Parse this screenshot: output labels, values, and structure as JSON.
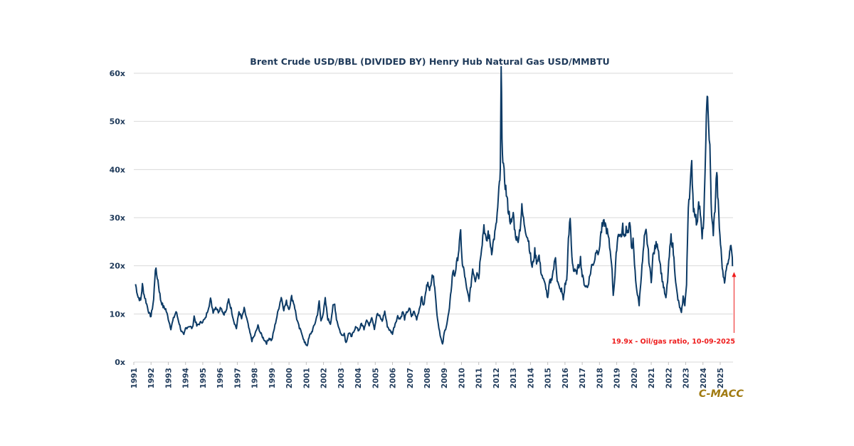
{
  "chart_data": {
    "type": "line",
    "title": "Brent Crude USD/BBL (DIVIDED BY) Henry Hub Natural Gas USD/MMBTU",
    "xlabel": "",
    "ylabel": "",
    "ylim": [
      0,
      60
    ],
    "xlim": [
      1991,
      2025.75
    ],
    "grid": true,
    "y_ticks": [
      {
        "value": 0,
        "label": "0x"
      },
      {
        "value": 10,
        "label": "10x"
      },
      {
        "value": 20,
        "label": "20x"
      },
      {
        "value": 30,
        "label": "30x"
      },
      {
        "value": 40,
        "label": "40x"
      },
      {
        "value": 50,
        "label": "50x"
      },
      {
        "value": 60,
        "label": "60x"
      }
    ],
    "x_ticks": [
      "1991",
      "1992",
      "1993",
      "1994",
      "1995",
      "1996",
      "1997",
      "1998",
      "1999",
      "2000",
      "2001",
      "2002",
      "2003",
      "2004",
      "2005",
      "2006",
      "2007",
      "2008",
      "2009",
      "2010",
      "2011",
      "2012",
      "2013",
      "2014",
      "2015",
      "2016",
      "2017",
      "2018",
      "2019",
      "2020",
      "2021",
      "2022",
      "2023",
      "2024",
      "2025"
    ],
    "series": [
      {
        "name": "Oil/gas ratio",
        "color": "#0d3b66",
        "points": [
          [
            1991.1,
            16.2
          ],
          [
            1991.25,
            13.5
          ],
          [
            1991.4,
            12.8
          ],
          [
            1991.5,
            16.0
          ],
          [
            1991.6,
            14.0
          ],
          [
            1991.75,
            12.0
          ],
          [
            1991.9,
            10.0
          ],
          [
            1992.0,
            9.5
          ],
          [
            1992.15,
            13.0
          ],
          [
            1992.25,
            19.5
          ],
          [
            1992.4,
            17.0
          ],
          [
            1992.55,
            13.0
          ],
          [
            1992.7,
            11.5
          ],
          [
            1992.85,
            11.0
          ],
          [
            1993.0,
            9.0
          ],
          [
            1993.15,
            7.0
          ],
          [
            1993.3,
            9.0
          ],
          [
            1993.45,
            10.5
          ],
          [
            1993.6,
            8.5
          ],
          [
            1993.75,
            6.5
          ],
          [
            1993.9,
            5.5
          ],
          [
            1994.0,
            7.0
          ],
          [
            1994.2,
            7.5
          ],
          [
            1994.4,
            7.0
          ],
          [
            1994.5,
            9.5
          ],
          [
            1994.65,
            7.5
          ],
          [
            1994.8,
            8.0
          ],
          [
            1995.0,
            8.5
          ],
          [
            1995.15,
            9.0
          ],
          [
            1995.3,
            11.0
          ],
          [
            1995.45,
            13.0
          ],
          [
            1995.6,
            10.5
          ],
          [
            1995.75,
            11.5
          ],
          [
            1995.9,
            10.5
          ],
          [
            1996.05,
            11.5
          ],
          [
            1996.2,
            10.0
          ],
          [
            1996.35,
            10.5
          ],
          [
            1996.5,
            13.0
          ],
          [
            1996.65,
            11.0
          ],
          [
            1996.8,
            8.5
          ],
          [
            1996.95,
            7.0
          ],
          [
            1997.1,
            10.5
          ],
          [
            1997.25,
            9.0
          ],
          [
            1997.4,
            11.0
          ],
          [
            1997.55,
            9.0
          ],
          [
            1997.7,
            6.5
          ],
          [
            1997.85,
            4.5
          ],
          [
            1998.0,
            5.5
          ],
          [
            1998.2,
            7.5
          ],
          [
            1998.35,
            6.0
          ],
          [
            1998.5,
            5.0
          ],
          [
            1998.7,
            4.0
          ],
          [
            1998.85,
            5.0
          ],
          [
            1999.0,
            4.5
          ],
          [
            1999.15,
            7.0
          ],
          [
            1999.3,
            9.5
          ],
          [
            1999.45,
            12.0
          ],
          [
            1999.55,
            13.5
          ],
          [
            1999.7,
            11.0
          ],
          [
            1999.85,
            12.5
          ],
          [
            2000.0,
            11.0
          ],
          [
            2000.15,
            13.5
          ],
          [
            2000.3,
            12.0
          ],
          [
            2000.45,
            9.0
          ],
          [
            2000.6,
            7.0
          ],
          [
            2000.75,
            6.0
          ],
          [
            2000.9,
            4.0
          ],
          [
            2001.05,
            3.5
          ],
          [
            2001.2,
            5.5
          ],
          [
            2001.35,
            6.5
          ],
          [
            2001.5,
            8.0
          ],
          [
            2001.65,
            10.0
          ],
          [
            2001.75,
            12.5
          ],
          [
            2001.85,
            8.5
          ],
          [
            2002.0,
            10.5
          ],
          [
            2002.1,
            13.0
          ],
          [
            2002.25,
            9.0
          ],
          [
            2002.4,
            8.0
          ],
          [
            2002.55,
            11.5
          ],
          [
            2002.65,
            12.0
          ],
          [
            2002.75,
            9.0
          ],
          [
            2002.9,
            7.0
          ],
          [
            2003.05,
            5.5
          ],
          [
            2003.2,
            6.0
          ],
          [
            2003.3,
            4.0
          ],
          [
            2003.45,
            6.0
          ],
          [
            2003.6,
            5.5
          ],
          [
            2003.75,
            6.0
          ],
          [
            2003.9,
            7.5
          ],
          [
            2004.05,
            6.5
          ],
          [
            2004.2,
            8.0
          ],
          [
            2004.35,
            7.0
          ],
          [
            2004.5,
            9.0
          ],
          [
            2004.65,
            7.5
          ],
          [
            2004.8,
            9.5
          ],
          [
            2004.95,
            7.0
          ],
          [
            2005.1,
            10.0
          ],
          [
            2005.25,
            9.5
          ],
          [
            2005.4,
            8.5
          ],
          [
            2005.55,
            10.5
          ],
          [
            2005.7,
            7.5
          ],
          [
            2005.85,
            6.5
          ],
          [
            2006.0,
            6.0
          ],
          [
            2006.15,
            8.0
          ],
          [
            2006.3,
            9.5
          ],
          [
            2006.45,
            9.0
          ],
          [
            2006.6,
            10.5
          ],
          [
            2006.7,
            9.0
          ],
          [
            2006.85,
            10.5
          ],
          [
            2007.0,
            11.0
          ],
          [
            2007.1,
            9.5
          ],
          [
            2007.25,
            10.5
          ],
          [
            2007.4,
            9.0
          ],
          [
            2007.55,
            11.0
          ],
          [
            2007.7,
            13.5
          ],
          [
            2007.8,
            11.5
          ],
          [
            2007.95,
            15.0
          ],
          [
            2008.05,
            17.0
          ],
          [
            2008.15,
            14.5
          ],
          [
            2008.3,
            18.5
          ],
          [
            2008.45,
            16.0
          ],
          [
            2008.55,
            11.0
          ],
          [
            2008.65,
            8.0
          ],
          [
            2008.8,
            5.0
          ],
          [
            2008.9,
            3.5
          ],
          [
            2009.0,
            6.0
          ],
          [
            2009.15,
            8.0
          ],
          [
            2009.3,
            11.0
          ],
          [
            2009.4,
            15.0
          ],
          [
            2009.5,
            19.0
          ],
          [
            2009.6,
            18.0
          ],
          [
            2009.75,
            21.0
          ],
          [
            2009.85,
            23.5
          ],
          [
            2009.95,
            27.0
          ],
          [
            2010.05,
            20.0
          ],
          [
            2010.15,
            19.0
          ],
          [
            2010.3,
            15.0
          ],
          [
            2010.45,
            13.0
          ],
          [
            2010.55,
            16.0
          ],
          [
            2010.65,
            19.5
          ],
          [
            2010.8,
            17.0
          ],
          [
            2010.9,
            19.0
          ],
          [
            2011.0,
            17.5
          ],
          [
            2011.1,
            22.0
          ],
          [
            2011.2,
            25.0
          ],
          [
            2011.3,
            28.5
          ],
          [
            2011.45,
            24.5
          ],
          [
            2011.55,
            27.0
          ],
          [
            2011.65,
            25.0
          ],
          [
            2011.75,
            23.0
          ],
          [
            2011.9,
            26.0
          ],
          [
            2012.0,
            28.0
          ],
          [
            2012.1,
            32.0
          ],
          [
            2012.2,
            37.0
          ],
          [
            2012.25,
            39.0
          ],
          [
            2012.3,
            60.5
          ],
          [
            2012.35,
            48.0
          ],
          [
            2012.4,
            41.0
          ],
          [
            2012.5,
            38.0
          ],
          [
            2012.6,
            35.0
          ],
          [
            2012.7,
            32.0
          ],
          [
            2012.8,
            30.0
          ],
          [
            2012.9,
            28.5
          ],
          [
            2013.0,
            31.0
          ],
          [
            2013.1,
            27.0
          ],
          [
            2013.25,
            25.0
          ],
          [
            2013.4,
            28.0
          ],
          [
            2013.5,
            32.0
          ],
          [
            2013.6,
            29.5
          ],
          [
            2013.75,
            27.0
          ],
          [
            2013.9,
            25.0
          ],
          [
            2014.0,
            22.0
          ],
          [
            2014.1,
            19.5
          ],
          [
            2014.25,
            23.0
          ],
          [
            2014.35,
            21.0
          ],
          [
            2014.5,
            22.0
          ],
          [
            2014.6,
            19.0
          ],
          [
            2014.75,
            17.0
          ],
          [
            2014.9,
            15.5
          ],
          [
            2015.0,
            13.0
          ],
          [
            2015.1,
            16.5
          ],
          [
            2015.2,
            17.0
          ],
          [
            2015.35,
            19.5
          ],
          [
            2015.45,
            22.0
          ],
          [
            2015.55,
            17.0
          ],
          [
            2015.7,
            15.0
          ],
          [
            2015.8,
            15.0
          ],
          [
            2015.9,
            13.0
          ],
          [
            2016.0,
            16.0
          ],
          [
            2016.1,
            17.0
          ],
          [
            2016.2,
            25.0
          ],
          [
            2016.3,
            30.0
          ],
          [
            2016.4,
            22.0
          ],
          [
            2016.5,
            19.0
          ],
          [
            2016.65,
            18.5
          ],
          [
            2016.8,
            20.0
          ],
          [
            2016.9,
            21.5
          ],
          [
            2017.0,
            18.0
          ],
          [
            2017.15,
            16.0
          ],
          [
            2017.3,
            15.5
          ],
          [
            2017.45,
            18.0
          ],
          [
            2017.55,
            20.0
          ],
          [
            2017.7,
            21.0
          ],
          [
            2017.85,
            24.0
          ],
          [
            2017.95,
            22.0
          ],
          [
            2018.05,
            26.0
          ],
          [
            2018.15,
            28.0
          ],
          [
            2018.3,
            29.0
          ],
          [
            2018.45,
            27.0
          ],
          [
            2018.55,
            25.0
          ],
          [
            2018.7,
            21.0
          ],
          [
            2018.8,
            14.0
          ],
          [
            2018.9,
            18.0
          ],
          [
            2019.0,
            24.0
          ],
          [
            2019.1,
            27.0
          ],
          [
            2019.25,
            26.0
          ],
          [
            2019.35,
            28.0
          ],
          [
            2019.45,
            25.5
          ],
          [
            2019.55,
            28.0
          ],
          [
            2019.65,
            27.0
          ],
          [
            2019.75,
            29.0
          ],
          [
            2019.85,
            24.0
          ],
          [
            2019.95,
            25.0
          ],
          [
            2020.0,
            22.0
          ],
          [
            2020.1,
            17.0
          ],
          [
            2020.2,
            14.0
          ],
          [
            2020.3,
            12.0
          ],
          [
            2020.4,
            17.0
          ],
          [
            2020.5,
            21.0
          ],
          [
            2020.6,
            25.5
          ],
          [
            2020.7,
            27.0
          ],
          [
            2020.8,
            24.0
          ],
          [
            2020.9,
            20.0
          ],
          [
            2021.0,
            17.0
          ],
          [
            2021.1,
            22.0
          ],
          [
            2021.25,
            24.0
          ],
          [
            2021.35,
            25.0
          ],
          [
            2021.5,
            21.0
          ],
          [
            2021.6,
            18.0
          ],
          [
            2021.75,
            15.0
          ],
          [
            2021.85,
            13.0
          ],
          [
            2021.95,
            17.0
          ],
          [
            2022.05,
            22.0
          ],
          [
            2022.15,
            26.0
          ],
          [
            2022.25,
            24.0
          ],
          [
            2022.35,
            20.0
          ],
          [
            2022.45,
            15.5
          ],
          [
            2022.55,
            13.0
          ],
          [
            2022.65,
            11.5
          ],
          [
            2022.75,
            10.0
          ],
          [
            2022.85,
            13.5
          ],
          [
            2022.95,
            12.0
          ],
          [
            2023.05,
            16.0
          ],
          [
            2023.1,
            25.0
          ],
          [
            2023.15,
            33.0
          ],
          [
            2023.25,
            36.0
          ],
          [
            2023.35,
            41.0
          ],
          [
            2023.45,
            32.0
          ],
          [
            2023.55,
            31.0
          ],
          [
            2023.65,
            28.0
          ],
          [
            2023.75,
            34.0
          ],
          [
            2023.85,
            31.0
          ],
          [
            2023.95,
            25.5
          ],
          [
            2024.05,
            30.0
          ],
          [
            2024.12,
            38.0
          ],
          [
            2024.17,
            48.0
          ],
          [
            2024.22,
            52.0
          ],
          [
            2024.27,
            56.5
          ],
          [
            2024.32,
            50.0
          ],
          [
            2024.4,
            44.0
          ],
          [
            2024.45,
            37.0
          ],
          [
            2024.5,
            30.0
          ],
          [
            2024.6,
            27.0
          ],
          [
            2024.7,
            32.0
          ],
          [
            2024.8,
            40.0
          ],
          [
            2024.85,
            35.0
          ],
          [
            2024.95,
            28.0
          ],
          [
            2025.05,
            23.0
          ],
          [
            2025.15,
            18.5
          ],
          [
            2025.25,
            17.0
          ],
          [
            2025.35,
            19.0
          ],
          [
            2025.45,
            21.0
          ],
          [
            2025.55,
            22.5
          ],
          [
            2025.6,
            25.0
          ],
          [
            2025.65,
            24.0
          ],
          [
            2025.7,
            21.0
          ],
          [
            2025.72,
            19.9
          ]
        ]
      }
    ],
    "annotations": [
      {
        "text": "19.9x - Oil/gas ratio, 10-09-2025",
        "x": 2025.72,
        "y": 19.9,
        "color": "#ee1c1c"
      }
    ],
    "watermark": "C-MACC",
    "watermark_color": "#a07a10"
  }
}
